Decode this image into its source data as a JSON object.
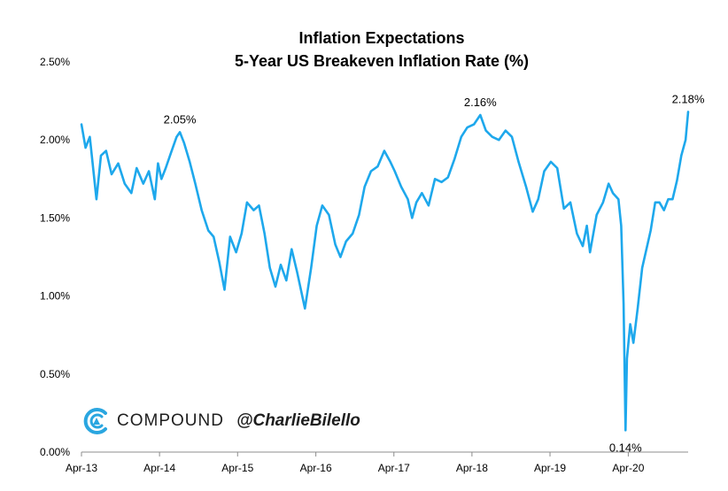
{
  "chart_data": {
    "type": "line",
    "title": "Inflation Expectations",
    "subtitle": "5-Year US Breakeven Inflation Rate (%)",
    "xlabel": "",
    "ylabel": "",
    "y_unit": "%",
    "ylim": [
      0,
      2.5
    ],
    "yticks": [
      {
        "value": 0.0,
        "label": "0.00%"
      },
      {
        "value": 0.5,
        "label": "0.50%"
      },
      {
        "value": 1.0,
        "label": "1.00%"
      },
      {
        "value": 1.5,
        "label": "1.50%"
      },
      {
        "value": 2.0,
        "label": "2.00%"
      },
      {
        "value": 2.5,
        "label": "2.50%"
      }
    ],
    "xlim": [
      "2013-04-01",
      "2021-01-06"
    ],
    "xticks": [
      {
        "date": "2013-04-01",
        "label": "Apr-13"
      },
      {
        "date": "2014-04-01",
        "label": "Apr-14"
      },
      {
        "date": "2015-04-01",
        "label": "Apr-15"
      },
      {
        "date": "2016-04-01",
        "label": "Apr-16"
      },
      {
        "date": "2017-04-01",
        "label": "Apr-17"
      },
      {
        "date": "2018-04-01",
        "label": "Apr-18"
      },
      {
        "date": "2019-04-01",
        "label": "Apr-19"
      },
      {
        "date": "2020-04-01",
        "label": "Apr-20"
      }
    ],
    "grid": false,
    "legend": "none",
    "line_color": "#1ea8ec",
    "series": [
      {
        "values": [
          [
            "2013-04-01",
            2.1
          ],
          [
            "2013-04-20",
            1.95
          ],
          [
            "2013-05-10",
            2.02
          ],
          [
            "2013-06-10",
            1.62
          ],
          [
            "2013-07-01",
            1.9
          ],
          [
            "2013-07-25",
            1.93
          ],
          [
            "2013-08-20",
            1.78
          ],
          [
            "2013-09-20",
            1.85
          ],
          [
            "2013-10-20",
            1.72
          ],
          [
            "2013-11-20",
            1.66
          ],
          [
            "2013-12-15",
            1.82
          ],
          [
            "2014-01-15",
            1.72
          ],
          [
            "2014-02-10",
            1.8
          ],
          [
            "2014-03-10",
            1.62
          ],
          [
            "2014-03-25",
            1.85
          ],
          [
            "2014-04-10",
            1.75
          ],
          [
            "2014-04-30",
            1.82
          ],
          [
            "2014-05-25",
            1.92
          ],
          [
            "2014-06-20",
            2.02
          ],
          [
            "2014-07-05",
            2.05
          ],
          [
            "2014-07-25",
            1.98
          ],
          [
            "2014-08-20",
            1.86
          ],
          [
            "2014-09-15",
            1.72
          ],
          [
            "2014-10-15",
            1.55
          ],
          [
            "2014-11-15",
            1.42
          ],
          [
            "2014-12-10",
            1.38
          ],
          [
            "2015-01-05",
            1.22
          ],
          [
            "2015-01-30",
            1.04
          ],
          [
            "2015-02-25",
            1.38
          ],
          [
            "2015-03-25",
            1.28
          ],
          [
            "2015-04-20",
            1.4
          ],
          [
            "2015-05-15",
            1.6
          ],
          [
            "2015-06-15",
            1.55
          ],
          [
            "2015-07-10",
            1.58
          ],
          [
            "2015-08-05",
            1.4
          ],
          [
            "2015-08-30",
            1.18
          ],
          [
            "2015-09-25",
            1.06
          ],
          [
            "2015-10-20",
            1.2
          ],
          [
            "2015-11-15",
            1.1
          ],
          [
            "2015-12-10",
            1.3
          ],
          [
            "2016-01-05",
            1.15
          ],
          [
            "2016-02-10",
            0.92
          ],
          [
            "2016-03-10",
            1.18
          ],
          [
            "2016-04-05",
            1.45
          ],
          [
            "2016-05-01",
            1.58
          ],
          [
            "2016-06-01",
            1.52
          ],
          [
            "2016-07-01",
            1.33
          ],
          [
            "2016-07-25",
            1.25
          ],
          [
            "2016-08-20",
            1.35
          ],
          [
            "2016-09-20",
            1.4
          ],
          [
            "2016-10-20",
            1.52
          ],
          [
            "2016-11-15",
            1.7
          ],
          [
            "2016-12-15",
            1.8
          ],
          [
            "2017-01-15",
            1.83
          ],
          [
            "2017-02-15",
            1.93
          ],
          [
            "2017-03-15",
            1.86
          ],
          [
            "2017-04-05",
            1.8
          ],
          [
            "2017-05-05",
            1.7
          ],
          [
            "2017-06-05",
            1.62
          ],
          [
            "2017-06-25",
            1.5
          ],
          [
            "2017-07-15",
            1.6
          ],
          [
            "2017-08-10",
            1.66
          ],
          [
            "2017-09-10",
            1.58
          ],
          [
            "2017-10-10",
            1.75
          ],
          [
            "2017-11-10",
            1.73
          ],
          [
            "2017-12-10",
            1.76
          ],
          [
            "2018-01-10",
            1.88
          ],
          [
            "2018-02-10",
            2.02
          ],
          [
            "2018-03-10",
            2.08
          ],
          [
            "2018-04-10",
            2.1
          ],
          [
            "2018-05-10",
            2.16
          ],
          [
            "2018-06-05",
            2.06
          ],
          [
            "2018-07-05",
            2.02
          ],
          [
            "2018-08-05",
            2.0
          ],
          [
            "2018-09-05",
            2.06
          ],
          [
            "2018-10-05",
            2.02
          ],
          [
            "2018-11-05",
            1.86
          ],
          [
            "2018-12-10",
            1.7
          ],
          [
            "2019-01-10",
            1.54
          ],
          [
            "2019-02-05",
            1.62
          ],
          [
            "2019-03-05",
            1.8
          ],
          [
            "2019-04-05",
            1.86
          ],
          [
            "2019-05-05",
            1.82
          ],
          [
            "2019-06-05",
            1.56
          ],
          [
            "2019-07-05",
            1.6
          ],
          [
            "2019-08-05",
            1.4
          ],
          [
            "2019-09-01",
            1.32
          ],
          [
            "2019-09-20",
            1.45
          ],
          [
            "2019-10-05",
            1.28
          ],
          [
            "2019-11-05",
            1.52
          ],
          [
            "2019-12-05",
            1.6
          ],
          [
            "2019-12-31",
            1.72
          ],
          [
            "2020-01-20",
            1.66
          ],
          [
            "2020-02-15",
            1.62
          ],
          [
            "2020-02-28",
            1.45
          ],
          [
            "2020-03-10",
            0.95
          ],
          [
            "2020-03-19",
            0.14
          ],
          [
            "2020-03-26",
            0.6
          ],
          [
            "2020-04-10",
            0.82
          ],
          [
            "2020-04-25",
            0.7
          ],
          [
            "2020-05-15",
            0.92
          ],
          [
            "2020-06-05",
            1.18
          ],
          [
            "2020-06-25",
            1.3
          ],
          [
            "2020-07-15",
            1.42
          ],
          [
            "2020-08-05",
            1.6
          ],
          [
            "2020-08-25",
            1.6
          ],
          [
            "2020-09-15",
            1.55
          ],
          [
            "2020-10-05",
            1.62
          ],
          [
            "2020-10-25",
            1.62
          ],
          [
            "2020-11-15",
            1.74
          ],
          [
            "2020-12-05",
            1.9
          ],
          [
            "2020-12-25",
            2.0
          ],
          [
            "2021-01-06",
            2.18
          ]
        ]
      }
    ],
    "annotations": [
      {
        "date": "2014-07-05",
        "value": 2.05,
        "label": "2.05%"
      },
      {
        "date": "2018-05-10",
        "value": 2.16,
        "label": "2.16%"
      },
      {
        "date": "2020-03-19",
        "value": 0.14,
        "label": "0.14%"
      },
      {
        "date": "2021-01-06",
        "value": 2.18,
        "label": "2.18%"
      }
    ]
  },
  "branding": {
    "company": "COMPOUND",
    "handle": "@CharlieBilello",
    "logo_icon": "compound-logo-icon",
    "logo_color": "#2aa6e0"
  }
}
